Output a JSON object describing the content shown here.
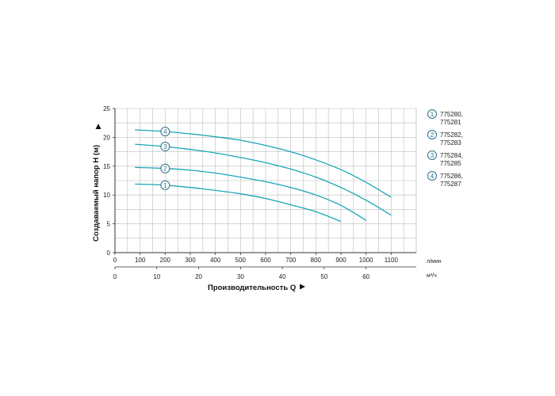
{
  "chart_data": {
    "type": "line",
    "x": [
      50,
      100,
      200,
      300,
      400,
      500,
      600,
      700,
      800,
      900,
      1000,
      1100
    ],
    "x_ticks_lmin": [
      0,
      100,
      200,
      300,
      400,
      500,
      600,
      700,
      800,
      900,
      1000,
      1100
    ],
    "x_ticks_m3h": [
      0,
      10,
      20,
      30,
      40,
      50,
      60
    ],
    "y_ticks": [
      0,
      5,
      10,
      15,
      20,
      25
    ],
    "xlim": [
      0,
      1200
    ],
    "ylim": [
      0,
      25
    ],
    "x_unit_top": "л/мин",
    "x_unit_bottom": "м³/ч",
    "xlabel": "Производительность Q",
    "ylabel": "Создаваемый напор H (м)",
    "grid": true,
    "line_color": "#1aa6b7",
    "marker_color": "#2a6f8a",
    "series": [
      {
        "marker": "1",
        "legend": [
          "775280,",
          "775281"
        ],
        "points": [
          [
            80,
            11.9
          ],
          [
            200,
            11.7
          ],
          [
            300,
            11.3
          ],
          [
            400,
            10.8
          ],
          [
            500,
            10.2
          ],
          [
            600,
            9.4
          ],
          [
            700,
            8.3
          ],
          [
            800,
            7.1
          ],
          [
            900,
            5.4
          ]
        ]
      },
      {
        "marker": "2",
        "legend": [
          "775282,",
          "775283"
        ],
        "points": [
          [
            80,
            14.8
          ],
          [
            200,
            14.6
          ],
          [
            300,
            14.3
          ],
          [
            400,
            13.8
          ],
          [
            500,
            13.1
          ],
          [
            600,
            12.3
          ],
          [
            700,
            11.3
          ],
          [
            800,
            10.0
          ],
          [
            900,
            8.2
          ],
          [
            1000,
            5.6
          ]
        ]
      },
      {
        "marker": "3",
        "legend": [
          "775284,",
          "775285"
        ],
        "points": [
          [
            80,
            18.8
          ],
          [
            200,
            18.4
          ],
          [
            300,
            17.9
          ],
          [
            400,
            17.3
          ],
          [
            500,
            16.5
          ],
          [
            600,
            15.6
          ],
          [
            700,
            14.5
          ],
          [
            800,
            13.1
          ],
          [
            900,
            11.3
          ],
          [
            1000,
            9.1
          ],
          [
            1100,
            6.5
          ]
        ]
      },
      {
        "marker": "4",
        "legend": [
          "775286,",
          "775287"
        ],
        "points": [
          [
            80,
            21.3
          ],
          [
            200,
            21.0
          ],
          [
            300,
            20.6
          ],
          [
            400,
            20.1
          ],
          [
            500,
            19.5
          ],
          [
            600,
            18.6
          ],
          [
            700,
            17.5
          ],
          [
            800,
            16.1
          ],
          [
            900,
            14.4
          ],
          [
            1000,
            12.2
          ],
          [
            1100,
            9.6
          ]
        ]
      }
    ]
  }
}
